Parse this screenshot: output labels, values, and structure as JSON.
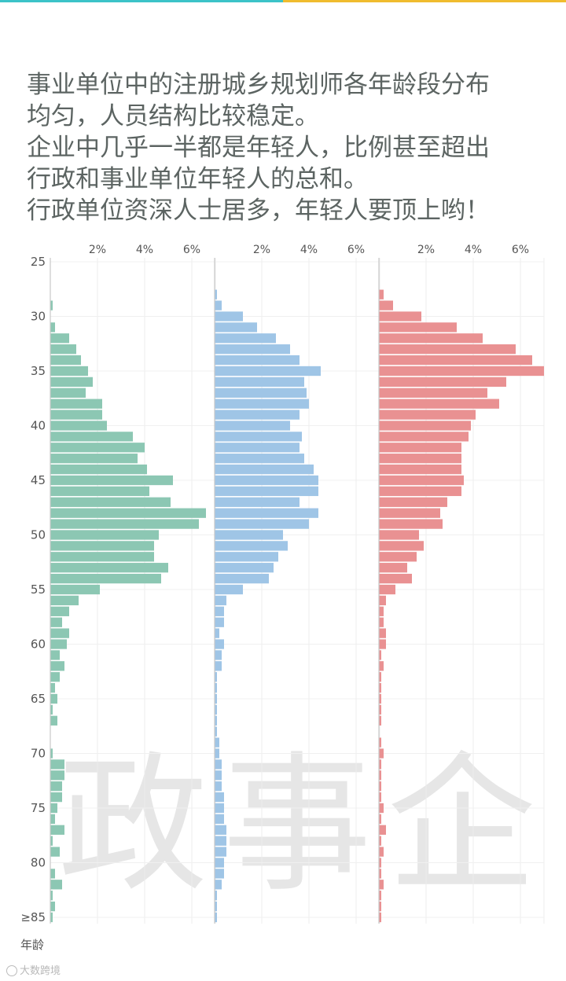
{
  "headline": [
    "事业单位中的注册城乡规划师各年龄段分布",
    "均匀，人员结构比较稳定。",
    "企业中几乎一半都是年轻人，比例甚至超出",
    "行政和事业单位年轻人的总和。",
    "行政单位资深人士居多，年轻人要顶上哟！"
  ],
  "footer": {
    "brand": "大数跨境"
  },
  "colors": {
    "gov": "#8cc7b3",
    "inst": "#9fc5e6",
    "ent": "#e99192",
    "headline": "#5c6462"
  },
  "chart_data": {
    "type": "bar",
    "orientation": "horizontal",
    "ylabel": "年龄",
    "y_ticks": [
      "25",
      "30",
      "35",
      "40",
      "45",
      "50",
      "55",
      "60",
      "65",
      "70",
      "75",
      "80",
      "≥85"
    ],
    "x_ticks": [
      "2%",
      "4%",
      "6%"
    ],
    "xlim": [
      0,
      7
    ],
    "ages": [
      25,
      26,
      27,
      28,
      29,
      30,
      31,
      32,
      33,
      34,
      35,
      36,
      37,
      38,
      39,
      40,
      41,
      42,
      43,
      44,
      45,
      46,
      47,
      48,
      49,
      50,
      51,
      52,
      53,
      54,
      55,
      56,
      57,
      58,
      59,
      60,
      61,
      62,
      63,
      64,
      65,
      66,
      67,
      68,
      69,
      70,
      71,
      72,
      73,
      74,
      75,
      76,
      77,
      78,
      79,
      80,
      81,
      82,
      83,
      84,
      85
    ],
    "series": [
      {
        "panel_label": "政",
        "color": "#8cc7b3",
        "values": [
          0,
          0,
          0,
          0,
          0.1,
          0,
          0.2,
          0.8,
          1.1,
          1.3,
          1.6,
          1.8,
          1.5,
          2.2,
          2.2,
          2.4,
          3.5,
          4.0,
          3.7,
          4.1,
          5.2,
          4.2,
          5.1,
          6.6,
          6.3,
          4.6,
          4.4,
          4.4,
          5.0,
          4.7,
          2.1,
          1.2,
          0.8,
          0.5,
          0.8,
          0.7,
          0.4,
          0.6,
          0.4,
          0.2,
          0.3,
          0.1,
          0.3,
          0,
          0,
          0.1,
          0.6,
          0.6,
          0.5,
          0.5,
          0.3,
          0.2,
          0.6,
          0.1,
          0.4,
          0,
          0.2,
          0.5,
          0.1,
          0.2,
          0.1
        ]
      },
      {
        "panel_label": "事",
        "color": "#9fc5e6",
        "values": [
          0,
          0,
          0,
          0.1,
          0.3,
          1.2,
          1.8,
          2.6,
          3.2,
          3.6,
          4.5,
          3.8,
          3.9,
          4.0,
          3.6,
          3.2,
          3.7,
          3.6,
          3.8,
          4.2,
          4.4,
          4.4,
          3.6,
          4.4,
          4.0,
          2.9,
          3.1,
          2.7,
          2.5,
          2.3,
          1.2,
          0.5,
          0.4,
          0.4,
          0.2,
          0.4,
          0.3,
          0.3,
          0.1,
          0.1,
          0.1,
          0.1,
          0.1,
          0.1,
          0.2,
          0.2,
          0.3,
          0.3,
          0.3,
          0.4,
          0.4,
          0.4,
          0.5,
          0.5,
          0.5,
          0.4,
          0.4,
          0.3,
          0.1,
          0.1,
          0.1
        ]
      },
      {
        "panel_label": "企",
        "color": "#e99192",
        "values": [
          0,
          0,
          0,
          0.2,
          0.6,
          1.8,
          3.3,
          4.4,
          5.8,
          6.5,
          7.0,
          5.4,
          4.6,
          5.1,
          4.1,
          3.9,
          3.8,
          3.5,
          3.5,
          3.5,
          3.6,
          3.5,
          2.9,
          2.6,
          2.7,
          1.7,
          1.9,
          1.6,
          1.2,
          1.4,
          0.7,
          0.3,
          0.2,
          0.2,
          0.3,
          0.3,
          0.1,
          0.2,
          0.1,
          0.1,
          0.1,
          0.1,
          0.1,
          0,
          0.1,
          0.2,
          0.1,
          0.1,
          0.1,
          0.1,
          0.2,
          0.1,
          0.3,
          0.1,
          0.2,
          0.1,
          0.1,
          0.2,
          0.1,
          0.1,
          0.1
        ]
      }
    ]
  }
}
